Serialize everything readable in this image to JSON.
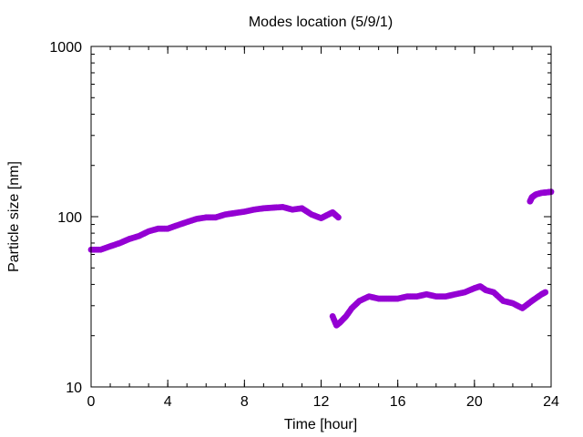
{
  "chart_data": {
    "type": "scatter",
    "title": "Modes location (5/9/1)",
    "xlabel": "Time [hour]",
    "ylabel": "Particle size [nm]",
    "xlim": [
      0,
      24
    ],
    "ylim": [
      10,
      1000
    ],
    "yscale": "log",
    "grid": false,
    "legend": "none",
    "xticks": [
      0,
      4,
      8,
      12,
      16,
      20,
      24
    ],
    "xtick_labels": [
      "0",
      "4",
      "8",
      "12",
      "16",
      "20",
      "24"
    ],
    "xminor_step": 1,
    "yticks": [
      10,
      100,
      1000
    ],
    "ytick_labels": [
      "10",
      "100",
      "1000"
    ],
    "marker_color": "#9400d3",
    "series": [
      {
        "x": [
          0,
          0.5,
          1,
          1.5,
          2,
          2.5,
          3,
          3.5,
          4,
          4.5,
          5,
          5.5,
          6,
          6.5,
          7,
          7.5,
          8,
          8.5,
          9,
          9.5,
          10,
          10.5,
          11,
          11.5,
          12,
          12.3,
          12.6,
          12.9
        ],
        "y": [
          64,
          64,
          67,
          70,
          74,
          77,
          82,
          85,
          85,
          89,
          93,
          97,
          99,
          99,
          103,
          105,
          107,
          110,
          112,
          113,
          114,
          110,
          112,
          103,
          98,
          102,
          106,
          99
        ]
      },
      {
        "x": [
          12.6,
          12.8,
          13,
          13.3,
          13.6,
          14,
          14.5,
          15,
          15.5,
          16,
          16.5,
          17,
          17.5,
          18,
          18.5,
          19,
          19.5,
          20,
          20.3,
          20.6,
          21,
          21.5,
          22,
          22.5,
          23,
          23.5,
          23.7
        ],
        "y": [
          26,
          23,
          24,
          26,
          29,
          32,
          34,
          33,
          33,
          33,
          34,
          34,
          35,
          34,
          34,
          35,
          36,
          38,
          39,
          37,
          36,
          32,
          31,
          29,
          32,
          35,
          36
        ]
      },
      {
        "x": [
          22.9,
          23,
          23.2,
          23.5,
          23.8,
          24
        ],
        "y": [
          123,
          130,
          135,
          138,
          139,
          140
        ]
      }
    ]
  }
}
